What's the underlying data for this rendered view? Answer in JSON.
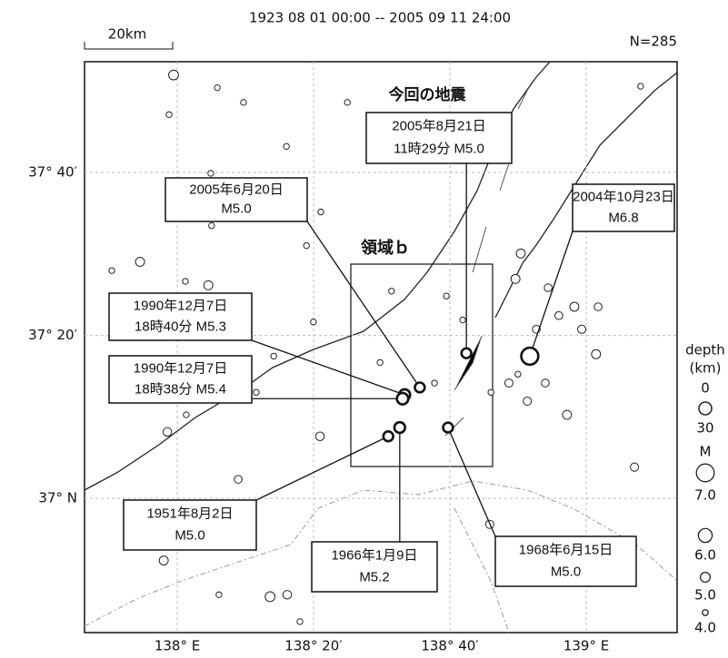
{
  "header": {
    "period": "1923 08 01 00:00 -- 2005 09 11 24:00",
    "scale": "20km",
    "count": "N=285"
  },
  "axes": {
    "xlim": [
      137.7733,
      139.2222
    ],
    "ylim": [
      36.7256,
      37.8932
    ],
    "xticks": [
      {
        "value": 138,
        "label": "138° E"
      },
      {
        "value": 138.3333,
        "label": "138° 20′"
      },
      {
        "value": 138.6667,
        "label": "138° 40′"
      },
      {
        "value": 139,
        "label": "139° E"
      }
    ],
    "yticks": [
      {
        "value": 37.6667,
        "label": "37° 40′"
      },
      {
        "value": 37.3333,
        "label": "37° 20′"
      },
      {
        "value": 37,
        "label": "37° N"
      }
    ]
  },
  "titles": {
    "current": "今回の地震",
    "region": "領域ｂ"
  },
  "annotations": [
    {
      "lines": [
        "2005年8月21日",
        "11時29分 M5.0"
      ],
      "lon": 138.707,
      "lat": 37.297,
      "m": 5.0
    },
    {
      "lines": [
        "2005年6月20日",
        "M5.0"
      ],
      "lon": 138.593,
      "lat": 37.227,
      "m": 5.0
    },
    {
      "lines": [
        "2004年10月23日",
        "M6.8"
      ],
      "lon": 138.862,
      "lat": 37.291,
      "m": 6.8
    },
    {
      "lines": [
        "1990年12月7日",
        "18時40分 M5.3"
      ],
      "lon": 138.556,
      "lat": 37.212,
      "m": 5.3
    },
    {
      "lines": [
        "1990年12月7日",
        "18時38分 M5.4"
      ],
      "lon": 138.551,
      "lat": 37.204,
      "m": 5.4
    },
    {
      "lines": [
        "1951年8月2日",
        "M5.0"
      ],
      "lon": 138.516,
      "lat": 37.127,
      "m": 5.0
    },
    {
      "lines": [
        "1966年1月9日",
        "M5.2"
      ],
      "lon": 138.544,
      "lat": 37.145,
      "m": 5.2
    },
    {
      "lines": [
        "1968年6月15日",
        "M5.0"
      ],
      "lon": 138.662,
      "lat": 37.145,
      "m": 5.0
    }
  ],
  "epicenters": [
    [
      137.991,
      37.866,
      5.0
    ],
    [
      138.098,
      37.84,
      4.0
    ],
    [
      138.162,
      37.81,
      4.0
    ],
    [
      137.98,
      37.785,
      4.0
    ],
    [
      138.267,
      37.72,
      4.0
    ],
    [
      138.416,
      37.81,
      4.0
    ],
    [
      138.082,
      37.665,
      4.0
    ],
    [
      138.084,
      37.558,
      4.0
    ],
    [
      138.351,
      37.586,
      4.0
    ],
    [
      138.316,
      37.517,
      4.0
    ],
    [
      137.909,
      37.484,
      4.8
    ],
    [
      137.84,
      37.466,
      4.0
    ],
    [
      138.02,
      37.444,
      4.0
    ],
    [
      138.076,
      37.436,
      4.8
    ],
    [
      138.524,
      37.424,
      4.0
    ],
    [
      138.658,
      37.414,
      4.0
    ],
    [
      138.333,
      37.361,
      4.0
    ],
    [
      138.698,
      37.365,
      4.0
    ],
    [
      138.236,
      37.291,
      4.0
    ],
    [
      138.193,
      37.217,
      4.0
    ],
    [
      138.022,
      37.171,
      4.0
    ],
    [
      137.976,
      37.136,
      4.7
    ],
    [
      138.349,
      37.127,
      4.7
    ],
    [
      138.149,
      37.039,
      4.5
    ],
    [
      137.967,
      36.873,
      4.8
    ],
    [
      138.227,
      36.799,
      5.0
    ],
    [
      138.269,
      36.803,
      4.7
    ],
    [
      138.102,
      36.803,
      4.0
    ],
    [
      138.3,
      36.748,
      4.0
    ],
    [
      138.84,
      37.501,
      4.8
    ],
    [
      138.827,
      37.449,
      4.8
    ],
    [
      138.907,
      37.431,
      4.5
    ],
    [
      138.933,
      37.374,
      4.5
    ],
    [
      138.971,
      37.392,
      4.8
    ],
    [
      139.024,
      37.295,
      4.8
    ],
    [
      139.029,
      37.392,
      4.5
    ],
    [
      138.953,
      37.171,
      4.8
    ],
    [
      139.118,
      37.064,
      4.6
    ],
    [
      138.764,
      36.947,
      4.6
    ],
    [
      138.496,
      37.278,
      4.0
    ],
    [
      138.629,
      37.236,
      4.0
    ],
    [
      138.811,
      37.236,
      4.6
    ],
    [
      138.9,
      37.236,
      4.5
    ],
    [
      138.856,
      37.199,
      4.6
    ],
    [
      138.878,
      37.346,
      4.5
    ],
    [
      138.989,
      37.346,
      4.6
    ],
    [
      138.833,
      37.254,
      4.0
    ],
    [
      138.767,
      37.217,
      4.0
    ],
    [
      139.133,
      37.843,
      4.0
    ],
    [
      138.58,
      37.713,
      4.0
    ]
  ],
  "legend": {
    "depth_title": "depth",
    "depth_unit": "(km)",
    "depths": [
      0,
      30
    ],
    "mag_title": "M",
    "magnitudes": [
      {
        "value": 7,
        "label": "7.0"
      },
      {
        "value": 6,
        "label": "6.0"
      },
      {
        "value": 5,
        "label": "5.0"
      },
      {
        "value": 4,
        "label": "4.0"
      }
    ]
  }
}
